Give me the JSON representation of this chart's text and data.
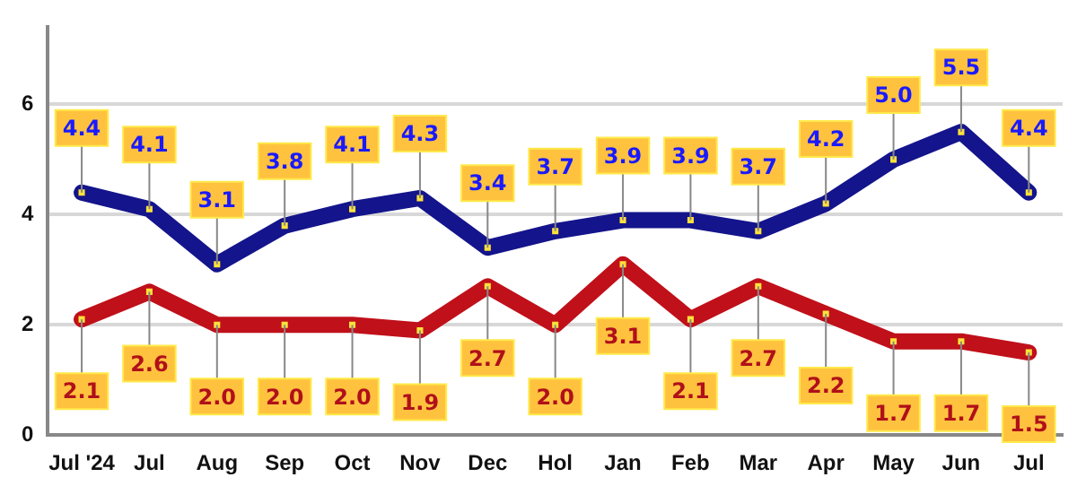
{
  "chart_data": {
    "type": "line",
    "categories": [
      "Jul '24",
      "Jul",
      "Aug",
      "Sep",
      "Oct",
      "Nov",
      "Dec",
      "Hol",
      "Jan",
      "Feb",
      "Mar",
      "Apr",
      "May",
      "Jun",
      "Jul"
    ],
    "series": [
      {
        "color": "#14148c",
        "values": [
          4.4,
          4.1,
          3.1,
          3.8,
          4.1,
          4.3,
          3.4,
          3.7,
          3.9,
          3.9,
          3.7,
          4.2,
          5.0,
          5.5,
          4.4
        ],
        "value_labels": [
          "4.4",
          "4.1",
          "3.1",
          "3.8",
          "4.1",
          "4.3",
          "3.4",
          "3.7",
          "3.9",
          "3.9",
          "3.7",
          "4.2",
          "5.0",
          "5.5",
          "4.4"
        ]
      },
      {
        "color": "#c0101a",
        "values": [
          2.1,
          2.6,
          2.0,
          2.0,
          2.0,
          1.9,
          2.7,
          2.0,
          3.1,
          2.1,
          2.7,
          2.2,
          1.7,
          1.7,
          1.5
        ],
        "value_labels": [
          "2.1",
          "2.6",
          "2.0",
          "2.0",
          "2.0",
          "1.9",
          "2.7",
          "2.0",
          "3.1",
          "2.1",
          "2.7",
          "2.2",
          "1.7",
          "1.7",
          "1.5"
        ]
      }
    ],
    "ylim": [
      0,
      7.4
    ],
    "yticks": [
      0,
      2,
      4,
      6
    ],
    "grid": "y",
    "legend": false,
    "marker": "square",
    "line_style": "solid"
  }
}
